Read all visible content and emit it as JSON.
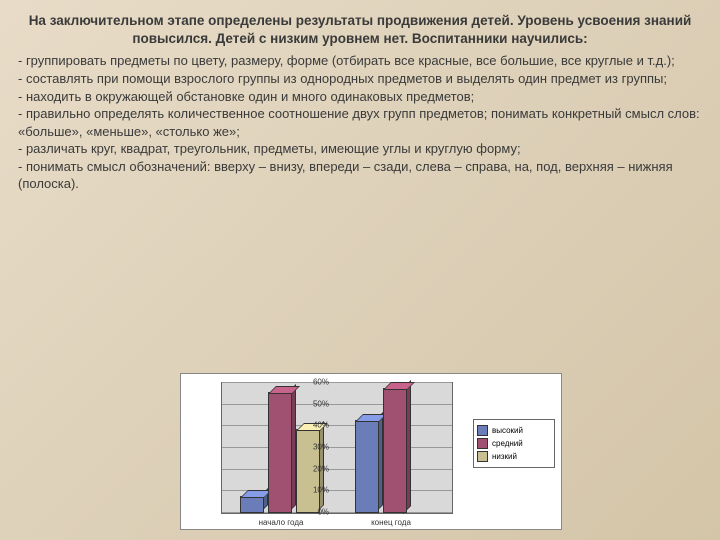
{
  "title": "На заключительном этапе определены результаты продвижения детей. Уровень усвоения знаний повысился. Детей с низким уровнем нет. Воспитанники научились:",
  "bullets": [
    "- группировать предметы по цвету, размеру, форме (отбирать все красные, все большие, все круглые и т.д.);",
    "  - составлять при помощи взрослого группы из однородных предметов и выделять один предмет из группы;",
    "  - находить в окружающей обстановке один и много одинаковых предметов;",
    "  - правильно определять количественное соотношение двух групп предметов; понимать конкретный смысл слов: «больше», «меньше», «столько же»;",
    "  - различать круг, квадрат, треугольник, предметы, имеющие углы и круглую форму;",
    "  - понимать смысл обозначений: вверху – внизу, впереди – сзади, слева – справа, на, под, верхняя – нижняя (полоска)."
  ],
  "chart": {
    "type": "bar",
    "y_ticks": [
      "0%",
      "10%",
      "20%",
      "30%",
      "40%",
      "50%",
      "60%"
    ],
    "y_max": 60,
    "categories": [
      "начало года",
      "конец года"
    ],
    "series": [
      {
        "name": "высокий",
        "color": "#6b7db8",
        "values": [
          7,
          42
        ]
      },
      {
        "name": "средний",
        "color": "#a05070",
        "values": [
          55,
          57
        ]
      },
      {
        "name": "низкий",
        "color": "#c8c090",
        "values": [
          38,
          0
        ]
      }
    ],
    "background": "#ffffff",
    "plot_bg": "#d9d9d9",
    "grid_color": "#999999"
  }
}
